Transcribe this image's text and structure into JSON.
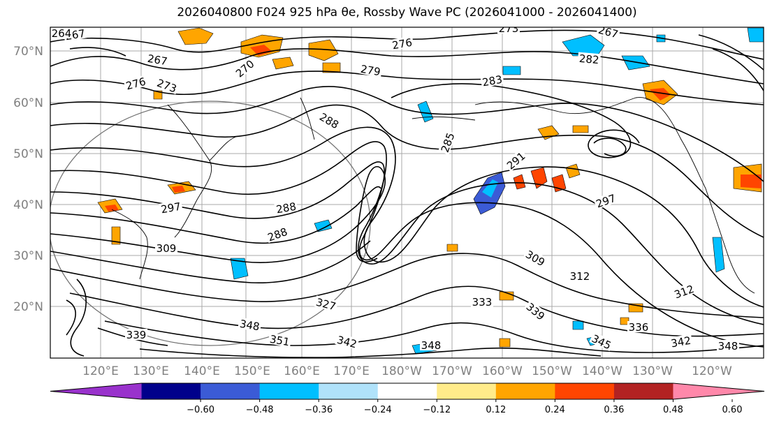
{
  "title": "2026040800 F024 925 hPa θe, Rossby Wave PC (2026041000 - 2026041400)",
  "map": {
    "lat_labels": [
      "70°N",
      "60°N",
      "50°N",
      "40°N",
      "30°N",
      "20°N"
    ],
    "lon_labels": [
      "120°E",
      "130°E",
      "140°E",
      "150°E",
      "160°E",
      "170°E",
      "180°W",
      "170°W",
      "160°W",
      "150°W",
      "140°W",
      "130°W",
      "120°W"
    ],
    "contour_labels": [
      {
        "text": "267"
      },
      {
        "text": "267"
      },
      {
        "text": "276"
      },
      {
        "text": "273"
      },
      {
        "text": "270"
      },
      {
        "text": "276"
      },
      {
        "text": "279"
      },
      {
        "text": "273"
      },
      {
        "text": "267"
      },
      {
        "text": "282"
      },
      {
        "text": "283"
      },
      {
        "text": "288"
      },
      {
        "text": "285"
      },
      {
        "text": "291"
      },
      {
        "text": "288"
      },
      {
        "text": "297"
      },
      {
        "text": "309"
      },
      {
        "text": "288"
      },
      {
        "text": "327"
      },
      {
        "text": "348"
      },
      {
        "text": "351"
      },
      {
        "text": "342"
      },
      {
        "text": "348"
      },
      {
        "text": "333"
      },
      {
        "text": "339"
      },
      {
        "text": "309"
      },
      {
        "text": "312"
      },
      {
        "text": "336"
      },
      {
        "text": "345"
      },
      {
        "text": "342"
      },
      {
        "text": "348"
      },
      {
        "text": "312"
      },
      {
        "text": "297"
      },
      {
        "text": "339"
      },
      {
        "text": "264"
      }
    ],
    "colors": {
      "contour": "#000000",
      "grid": "#a0a0a0",
      "coast": "#000000"
    }
  },
  "colorbar": {
    "ticks": [
      "−0.60",
      "−0.48",
      "−0.36",
      "−0.24",
      "−0.12",
      "0.12",
      "0.24",
      "0.36",
      "0.48",
      "0.60"
    ],
    "colors": [
      "#9932cc",
      "#00008b",
      "#3b5bd6",
      "#00bfff",
      "#b0e2fa",
      "#ffffff",
      "#ffeb8a",
      "#ffa500",
      "#ff4500",
      "#b22222",
      "#ff88aa"
    ]
  }
}
